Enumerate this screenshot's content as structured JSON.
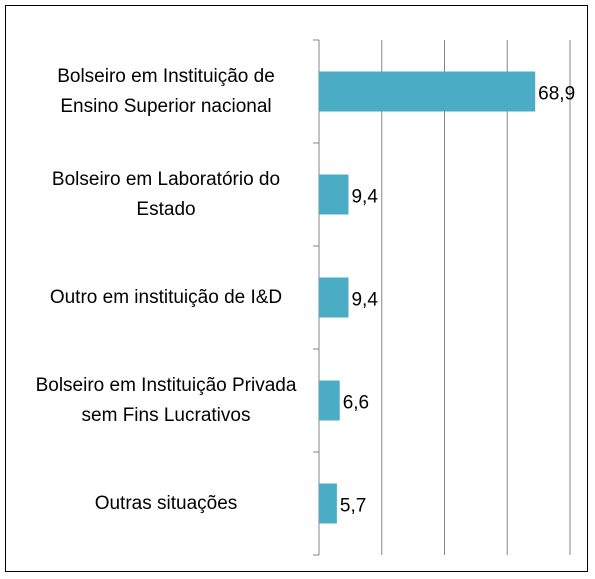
{
  "chart_data": {
    "type": "bar",
    "orientation": "horizontal",
    "categories": [
      "Bolseiro em Instituição de Ensino Superior nacional",
      "Bolseiro em Laboratório do Estado",
      "Outro em instituição de I&D",
      "Bolseiro em Instituição Privada sem Fins Lucrativos",
      "Outras situações"
    ],
    "values": [
      68.9,
      9.4,
      9.4,
      6.6,
      5.7
    ],
    "value_labels": [
      "68,9",
      "9,4",
      "9,4",
      "6,6",
      "5,7"
    ],
    "color": "#4bacc6",
    "xlim": [
      0,
      80
    ],
    "xticks": [
      0,
      20,
      40,
      60,
      80
    ],
    "grid": true
  }
}
